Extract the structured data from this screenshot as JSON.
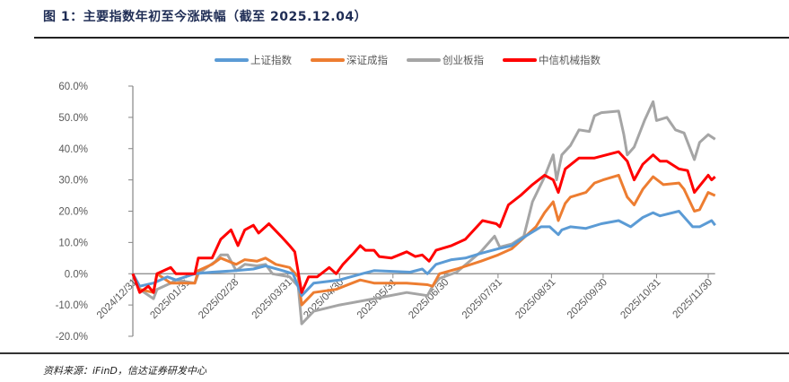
{
  "title": "图 1：主要指数年初至今涨跌幅（截至 2025.12.04）",
  "source": "资料来源：iFinD，信达证券研发中心",
  "chart_data": {
    "type": "line",
    "title": "",
    "xlabel": "",
    "ylabel": "",
    "ylim": [
      -20,
      60
    ],
    "yticks": [
      60,
      50,
      40,
      30,
      20,
      10,
      0,
      -10,
      -20
    ],
    "ytick_labels": [
      "60.0%",
      "50.0%",
      "40.0%",
      "30.0%",
      "20.0%",
      "10.0%",
      "0.0%",
      "-10.0%",
      "-20.0%"
    ],
    "xlim": [
      "2024-12-31",
      "2025-12-04"
    ],
    "xticks": [
      "2024-12-31",
      "2025-01-31",
      "2025-02-28",
      "2025-03-31",
      "2025-04-30",
      "2025-05-31",
      "2025-06-30",
      "2025-07-31",
      "2025-08-31",
      "2025-09-30",
      "2025-10-31",
      "2025-11-30"
    ],
    "xtick_labels": [
      "2024/12/31",
      "2025/01/31",
      "2025/02/28",
      "2025/03/31",
      "2025/04/30",
      "2025/05/31",
      "2025/06/30",
      "2025/07/31",
      "2025/08/31",
      "2025/09/30",
      "2025/10/31",
      "2025/11/30"
    ],
    "grid": false,
    "legend": "top",
    "series": [
      {
        "name": "上证指数",
        "color": "#5b9bd5",
        "points": [
          [
            "2024-12-31",
            0
          ],
          [
            "2025-01-04",
            -4
          ],
          [
            "2025-01-12",
            -3
          ],
          [
            "2025-01-20",
            -1
          ],
          [
            "2025-01-25",
            -2
          ],
          [
            "2025-02-05",
            0
          ],
          [
            "2025-02-15",
            0.5
          ],
          [
            "2025-03-01",
            1
          ],
          [
            "2025-03-11",
            1.5
          ],
          [
            "2025-03-18",
            2.5
          ],
          [
            "2025-03-28",
            1
          ],
          [
            "2025-04-03",
            0
          ],
          [
            "2025-04-08",
            -7
          ],
          [
            "2025-04-15",
            -3
          ],
          [
            "2025-04-30",
            -2
          ],
          [
            "2025-05-13",
            0
          ],
          [
            "2025-05-20",
            1
          ],
          [
            "2025-06-10",
            0.5
          ],
          [
            "2025-06-17",
            1.5
          ],
          [
            "2025-06-20",
            0
          ],
          [
            "2025-06-25",
            3
          ],
          [
            "2025-07-04",
            4.5
          ],
          [
            "2025-07-12",
            5
          ],
          [
            "2025-07-21",
            6.5
          ],
          [
            "2025-07-31",
            8
          ],
          [
            "2025-08-08",
            9
          ],
          [
            "2025-08-16",
            12
          ],
          [
            "2025-08-25",
            15
          ],
          [
            "2025-08-30",
            15
          ],
          [
            "2025-09-04",
            12.5
          ],
          [
            "2025-09-06",
            14
          ],
          [
            "2025-09-11",
            15
          ],
          [
            "2025-09-20",
            14.5
          ],
          [
            "2025-09-29",
            16
          ],
          [
            "2025-10-09",
            17
          ],
          [
            "2025-10-16",
            15
          ],
          [
            "2025-10-23",
            18
          ],
          [
            "2025-10-29",
            19.5
          ],
          [
            "2025-11-02",
            18.5
          ],
          [
            "2025-11-13",
            20
          ],
          [
            "2025-11-21",
            15
          ],
          [
            "2025-11-25",
            15
          ],
          [
            "2025-12-02",
            17
          ],
          [
            "2025-12-04",
            15.5
          ]
        ]
      },
      {
        "name": "深证成指",
        "color": "#ed7d31",
        "points": [
          [
            "2024-12-31",
            0
          ],
          [
            "2025-01-04",
            -5
          ],
          [
            "2025-01-12",
            -6
          ],
          [
            "2025-01-14",
            0
          ],
          [
            "2025-01-22",
            -3
          ],
          [
            "2025-02-05",
            -3
          ],
          [
            "2025-02-07",
            1
          ],
          [
            "2025-02-15",
            3
          ],
          [
            "2025-02-20",
            5
          ],
          [
            "2025-03-01",
            3
          ],
          [
            "2025-03-06",
            4.5
          ],
          [
            "2025-03-13",
            4
          ],
          [
            "2025-03-18",
            5
          ],
          [
            "2025-03-24",
            3
          ],
          [
            "2025-04-01",
            2
          ],
          [
            "2025-04-06",
            -1
          ],
          [
            "2025-04-08",
            -10
          ],
          [
            "2025-04-15",
            -6
          ],
          [
            "2025-04-28",
            -5
          ],
          [
            "2025-05-12",
            -2
          ],
          [
            "2025-05-20",
            -3
          ],
          [
            "2025-06-08",
            -3
          ],
          [
            "2025-06-20",
            -3.5
          ],
          [
            "2025-06-23",
            -4
          ],
          [
            "2025-06-27",
            0
          ],
          [
            "2025-07-07",
            1.5
          ],
          [
            "2025-07-21",
            4
          ],
          [
            "2025-07-31",
            6
          ],
          [
            "2025-08-08",
            8
          ],
          [
            "2025-08-22",
            15
          ],
          [
            "2025-08-27",
            19.5
          ],
          [
            "2025-09-01",
            23
          ],
          [
            "2025-09-04",
            17
          ],
          [
            "2025-09-08",
            22.5
          ],
          [
            "2025-09-11",
            24.5
          ],
          [
            "2025-09-20",
            26
          ],
          [
            "2025-09-25",
            29
          ],
          [
            "2025-09-30",
            30
          ],
          [
            "2025-10-09",
            31.5
          ],
          [
            "2025-10-14",
            24.5
          ],
          [
            "2025-10-18",
            22
          ],
          [
            "2025-10-23",
            27
          ],
          [
            "2025-10-29",
            31
          ],
          [
            "2025-11-04",
            28.5
          ],
          [
            "2025-11-13",
            29
          ],
          [
            "2025-11-16",
            27
          ],
          [
            "2025-11-22",
            20
          ],
          [
            "2025-11-25",
            20.5
          ],
          [
            "2025-11-30",
            26
          ],
          [
            "2025-12-04",
            25
          ]
        ]
      },
      {
        "name": "创业板指",
        "color": "#a5a5a5",
        "points": [
          [
            "2024-12-31",
            0
          ],
          [
            "2025-01-04",
            -5
          ],
          [
            "2025-01-12",
            -8
          ],
          [
            "2025-01-14",
            -5
          ],
          [
            "2025-01-22",
            -3
          ],
          [
            "2025-01-25",
            -2
          ],
          [
            "2025-02-05",
            -3
          ],
          [
            "2025-02-07",
            0
          ],
          [
            "2025-02-17",
            4
          ],
          [
            "2025-02-20",
            6
          ],
          [
            "2025-02-24",
            6
          ],
          [
            "2025-03-01",
            1
          ],
          [
            "2025-03-06",
            3
          ],
          [
            "2025-03-13",
            2.5
          ],
          [
            "2025-03-18",
            3
          ],
          [
            "2025-03-22",
            0
          ],
          [
            "2025-04-01",
            -1
          ],
          [
            "2025-04-06",
            -4
          ],
          [
            "2025-04-08",
            -16
          ],
          [
            "2025-04-15",
            -12
          ],
          [
            "2025-04-30",
            -10
          ],
          [
            "2025-05-20",
            -8
          ],
          [
            "2025-06-08",
            -6
          ],
          [
            "2025-06-20",
            -7
          ],
          [
            "2025-06-23",
            -4
          ],
          [
            "2025-06-27",
            -1.5
          ],
          [
            "2025-07-07",
            0.5
          ],
          [
            "2025-07-21",
            7
          ],
          [
            "2025-07-29",
            12
          ],
          [
            "2025-08-01",
            8.5
          ],
          [
            "2025-08-08",
            9.5
          ],
          [
            "2025-08-15",
            12
          ],
          [
            "2025-08-20",
            23
          ],
          [
            "2025-08-27",
            31
          ],
          [
            "2025-09-01",
            38
          ],
          [
            "2025-09-03",
            30
          ],
          [
            "2025-09-06",
            38
          ],
          [
            "2025-09-11",
            41
          ],
          [
            "2025-09-16",
            46
          ],
          [
            "2025-09-22",
            45.5
          ],
          [
            "2025-09-25",
            50.5
          ],
          [
            "2025-09-29",
            51.5
          ],
          [
            "2025-10-09",
            52
          ],
          [
            "2025-10-12",
            44.5
          ],
          [
            "2025-10-14",
            38
          ],
          [
            "2025-10-18",
            40.5
          ],
          [
            "2025-10-24",
            49
          ],
          [
            "2025-10-29",
            55
          ],
          [
            "2025-10-31",
            49
          ],
          [
            "2025-11-06",
            50
          ],
          [
            "2025-11-11",
            46
          ],
          [
            "2025-11-16",
            45
          ],
          [
            "2025-11-22",
            36.5
          ],
          [
            "2025-11-25",
            42
          ],
          [
            "2025-11-30",
            44.5
          ],
          [
            "2025-12-04",
            43
          ]
        ]
      },
      {
        "name": "中信机械指数",
        "color": "#ff0000",
        "points": [
          [
            "2024-12-31",
            0
          ],
          [
            "2025-01-04",
            -6
          ],
          [
            "2025-01-09",
            -4
          ],
          [
            "2025-01-12",
            -6
          ],
          [
            "2025-01-14",
            0
          ],
          [
            "2025-01-22",
            2
          ],
          [
            "2025-01-25",
            0
          ],
          [
            "2025-02-05",
            0
          ],
          [
            "2025-02-07",
            5
          ],
          [
            "2025-02-15",
            5
          ],
          [
            "2025-02-20",
            11
          ],
          [
            "2025-02-26",
            14
          ],
          [
            "2025-03-02",
            9
          ],
          [
            "2025-03-06",
            14
          ],
          [
            "2025-03-11",
            15.5
          ],
          [
            "2025-03-14",
            13
          ],
          [
            "2025-03-20",
            16
          ],
          [
            "2025-03-27",
            12
          ],
          [
            "2025-04-01",
            9
          ],
          [
            "2025-04-04",
            7
          ],
          [
            "2025-04-08",
            -6
          ],
          [
            "2025-04-12",
            -1
          ],
          [
            "2025-04-17",
            -1
          ],
          [
            "2025-04-24",
            2
          ],
          [
            "2025-04-28",
            0
          ],
          [
            "2025-05-02",
            3
          ],
          [
            "2025-05-08",
            6.5
          ],
          [
            "2025-05-12",
            9
          ],
          [
            "2025-05-15",
            7.5
          ],
          [
            "2025-05-20",
            7.5
          ],
          [
            "2025-05-23",
            5.5
          ],
          [
            "2025-05-30",
            5
          ],
          [
            "2025-06-08",
            7
          ],
          [
            "2025-06-13",
            5.5
          ],
          [
            "2025-06-17",
            6
          ],
          [
            "2025-06-21",
            4
          ],
          [
            "2025-06-25",
            7.5
          ],
          [
            "2025-07-04",
            9
          ],
          [
            "2025-07-12",
            11
          ],
          [
            "2025-07-22",
            17
          ],
          [
            "2025-07-30",
            16
          ],
          [
            "2025-08-01",
            15
          ],
          [
            "2025-08-06",
            22
          ],
          [
            "2025-08-13",
            25
          ],
          [
            "2025-08-20",
            28.5
          ],
          [
            "2025-08-27",
            31.5
          ],
          [
            "2025-09-01",
            30
          ],
          [
            "2025-09-04",
            26
          ],
          [
            "2025-09-08",
            33.5
          ],
          [
            "2025-09-16",
            37
          ],
          [
            "2025-09-25",
            37
          ],
          [
            "2025-10-09",
            39
          ],
          [
            "2025-10-14",
            36
          ],
          [
            "2025-10-18",
            30
          ],
          [
            "2025-10-23",
            35
          ],
          [
            "2025-10-29",
            38
          ],
          [
            "2025-11-02",
            36
          ],
          [
            "2025-11-06",
            36
          ],
          [
            "2025-11-13",
            33.5
          ],
          [
            "2025-11-18",
            33
          ],
          [
            "2025-11-22",
            26
          ],
          [
            "2025-11-30",
            31.5
          ],
          [
            "2025-12-02",
            30
          ],
          [
            "2025-12-04",
            31
          ]
        ]
      }
    ]
  }
}
